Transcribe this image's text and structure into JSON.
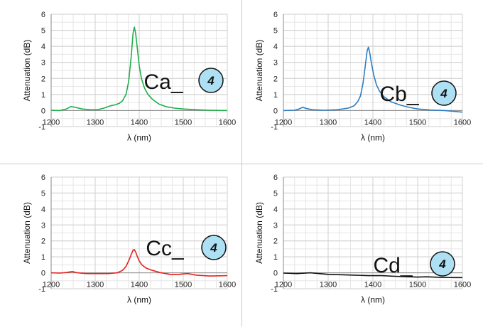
{
  "chart_data": [
    {
      "type": "line",
      "tag": "Ca_",
      "badge": "4",
      "color": "#1fae4b",
      "xlabel": "λ (nm)",
      "ylabel": "Attenuation (dB)",
      "xlim": [
        1200,
        1600
      ],
      "ylim": [
        -1,
        6
      ],
      "xticks": [
        "1200",
        "1300",
        "1400",
        "1500",
        "1600"
      ],
      "yticks": [
        "-1",
        "0",
        "1",
        "2",
        "3",
        "4",
        "5",
        "6"
      ],
      "grid": true,
      "series": [
        {
          "x": [
            1200,
            1220,
            1235,
            1245,
            1255,
            1270,
            1290,
            1305,
            1320,
            1335,
            1345,
            1355,
            1362,
            1370,
            1376,
            1382,
            1386,
            1389,
            1392,
            1396,
            1400,
            1405,
            1412,
            1420,
            1430,
            1445,
            1460,
            1480,
            1500,
            1530,
            1560,
            1600
          ],
          "y": [
            0.02,
            0.0,
            0.1,
            0.25,
            0.2,
            0.1,
            0.05,
            0.05,
            0.15,
            0.3,
            0.35,
            0.45,
            0.6,
            1.0,
            1.8,
            3.4,
            4.8,
            5.2,
            4.8,
            3.8,
            2.8,
            2.0,
            1.4,
            1.0,
            0.7,
            0.4,
            0.25,
            0.15,
            0.1,
            0.05,
            0.02,
            0.0
          ]
        }
      ]
    },
    {
      "type": "line",
      "tag": "Cb_",
      "badge": "4",
      "color": "#2e7dc1",
      "xlabel": "λ (nm)",
      "ylabel": "Attenuation (dB)",
      "xlim": [
        1200,
        1600
      ],
      "ylim": [
        -1,
        6
      ],
      "xticks": [
        "1200",
        "1300",
        "1400",
        "1500",
        "1600"
      ],
      "yticks": [
        "-1",
        "0",
        "1",
        "2",
        "3",
        "4",
        "5",
        "6"
      ],
      "grid": true,
      "series": [
        {
          "x": [
            1200,
            1225,
            1235,
            1243,
            1252,
            1265,
            1290,
            1320,
            1345,
            1358,
            1366,
            1372,
            1378,
            1383,
            1387,
            1390,
            1393,
            1397,
            1402,
            1408,
            1415,
            1425,
            1440,
            1460,
            1480,
            1500,
            1530,
            1560,
            1600
          ],
          "y": [
            0.0,
            0.02,
            0.1,
            0.2,
            0.12,
            0.05,
            0.02,
            0.05,
            0.15,
            0.3,
            0.55,
            0.9,
            1.7,
            2.8,
            3.7,
            3.95,
            3.6,
            2.9,
            2.2,
            1.6,
            1.2,
            0.85,
            0.55,
            0.35,
            0.2,
            0.1,
            0.03,
            0.0,
            -0.1
          ]
        }
      ]
    },
    {
      "type": "line",
      "tag": "Cc_",
      "badge": "4",
      "color": "#e8201e",
      "xlabel": "λ (nm)",
      "ylabel": "Attenuation (dB)",
      "xlim": [
        1200,
        1600
      ],
      "ylim": [
        -1,
        6
      ],
      "xticks": [
        "1200",
        "1300",
        "1400",
        "1500",
        "1600"
      ],
      "yticks": [
        "-1",
        "0",
        "1",
        "2",
        "3",
        "4",
        "5",
        "6"
      ],
      "grid": true,
      "series": [
        {
          "x": [
            1200,
            1220,
            1235,
            1248,
            1260,
            1280,
            1300,
            1330,
            1350,
            1362,
            1370,
            1377,
            1382,
            1386,
            1389,
            1392,
            1396,
            1400,
            1406,
            1415,
            1430,
            1450,
            1470,
            1490,
            1510,
            1530,
            1560,
            1600
          ],
          "y": [
            0.0,
            -0.02,
            0.02,
            0.08,
            0.0,
            -0.05,
            -0.05,
            -0.05,
            0.0,
            0.15,
            0.4,
            0.8,
            1.15,
            1.42,
            1.45,
            1.3,
            1.0,
            0.75,
            0.5,
            0.3,
            0.15,
            0.0,
            -0.1,
            -0.1,
            -0.05,
            -0.15,
            -0.2,
            -0.18
          ]
        }
      ]
    },
    {
      "type": "line",
      "tag": "Cd_",
      "badge": "4",
      "color": "#111111",
      "xlabel": "λ (nm)",
      "ylabel": "Attenuation (dB)",
      "xlim": [
        1200,
        1600
      ],
      "ylim": [
        -1,
        6
      ],
      "xticks": [
        "1200",
        "1300",
        "1400",
        "1500",
        "1600"
      ],
      "yticks": [
        "-1",
        "0",
        "1",
        "2",
        "3",
        "4",
        "5",
        "6"
      ],
      "grid": true,
      "series": [
        {
          "x": [
            1200,
            1230,
            1260,
            1280,
            1300,
            1330,
            1360,
            1390,
            1420,
            1450,
            1480,
            1500,
            1520,
            1550,
            1580,
            1600
          ],
          "y": [
            -0.02,
            -0.05,
            0.0,
            -0.05,
            -0.1,
            -0.12,
            -0.15,
            -0.18,
            -0.18,
            -0.22,
            -0.25,
            -0.27,
            -0.25,
            -0.28,
            -0.3,
            -0.3
          ]
        }
      ]
    }
  ]
}
